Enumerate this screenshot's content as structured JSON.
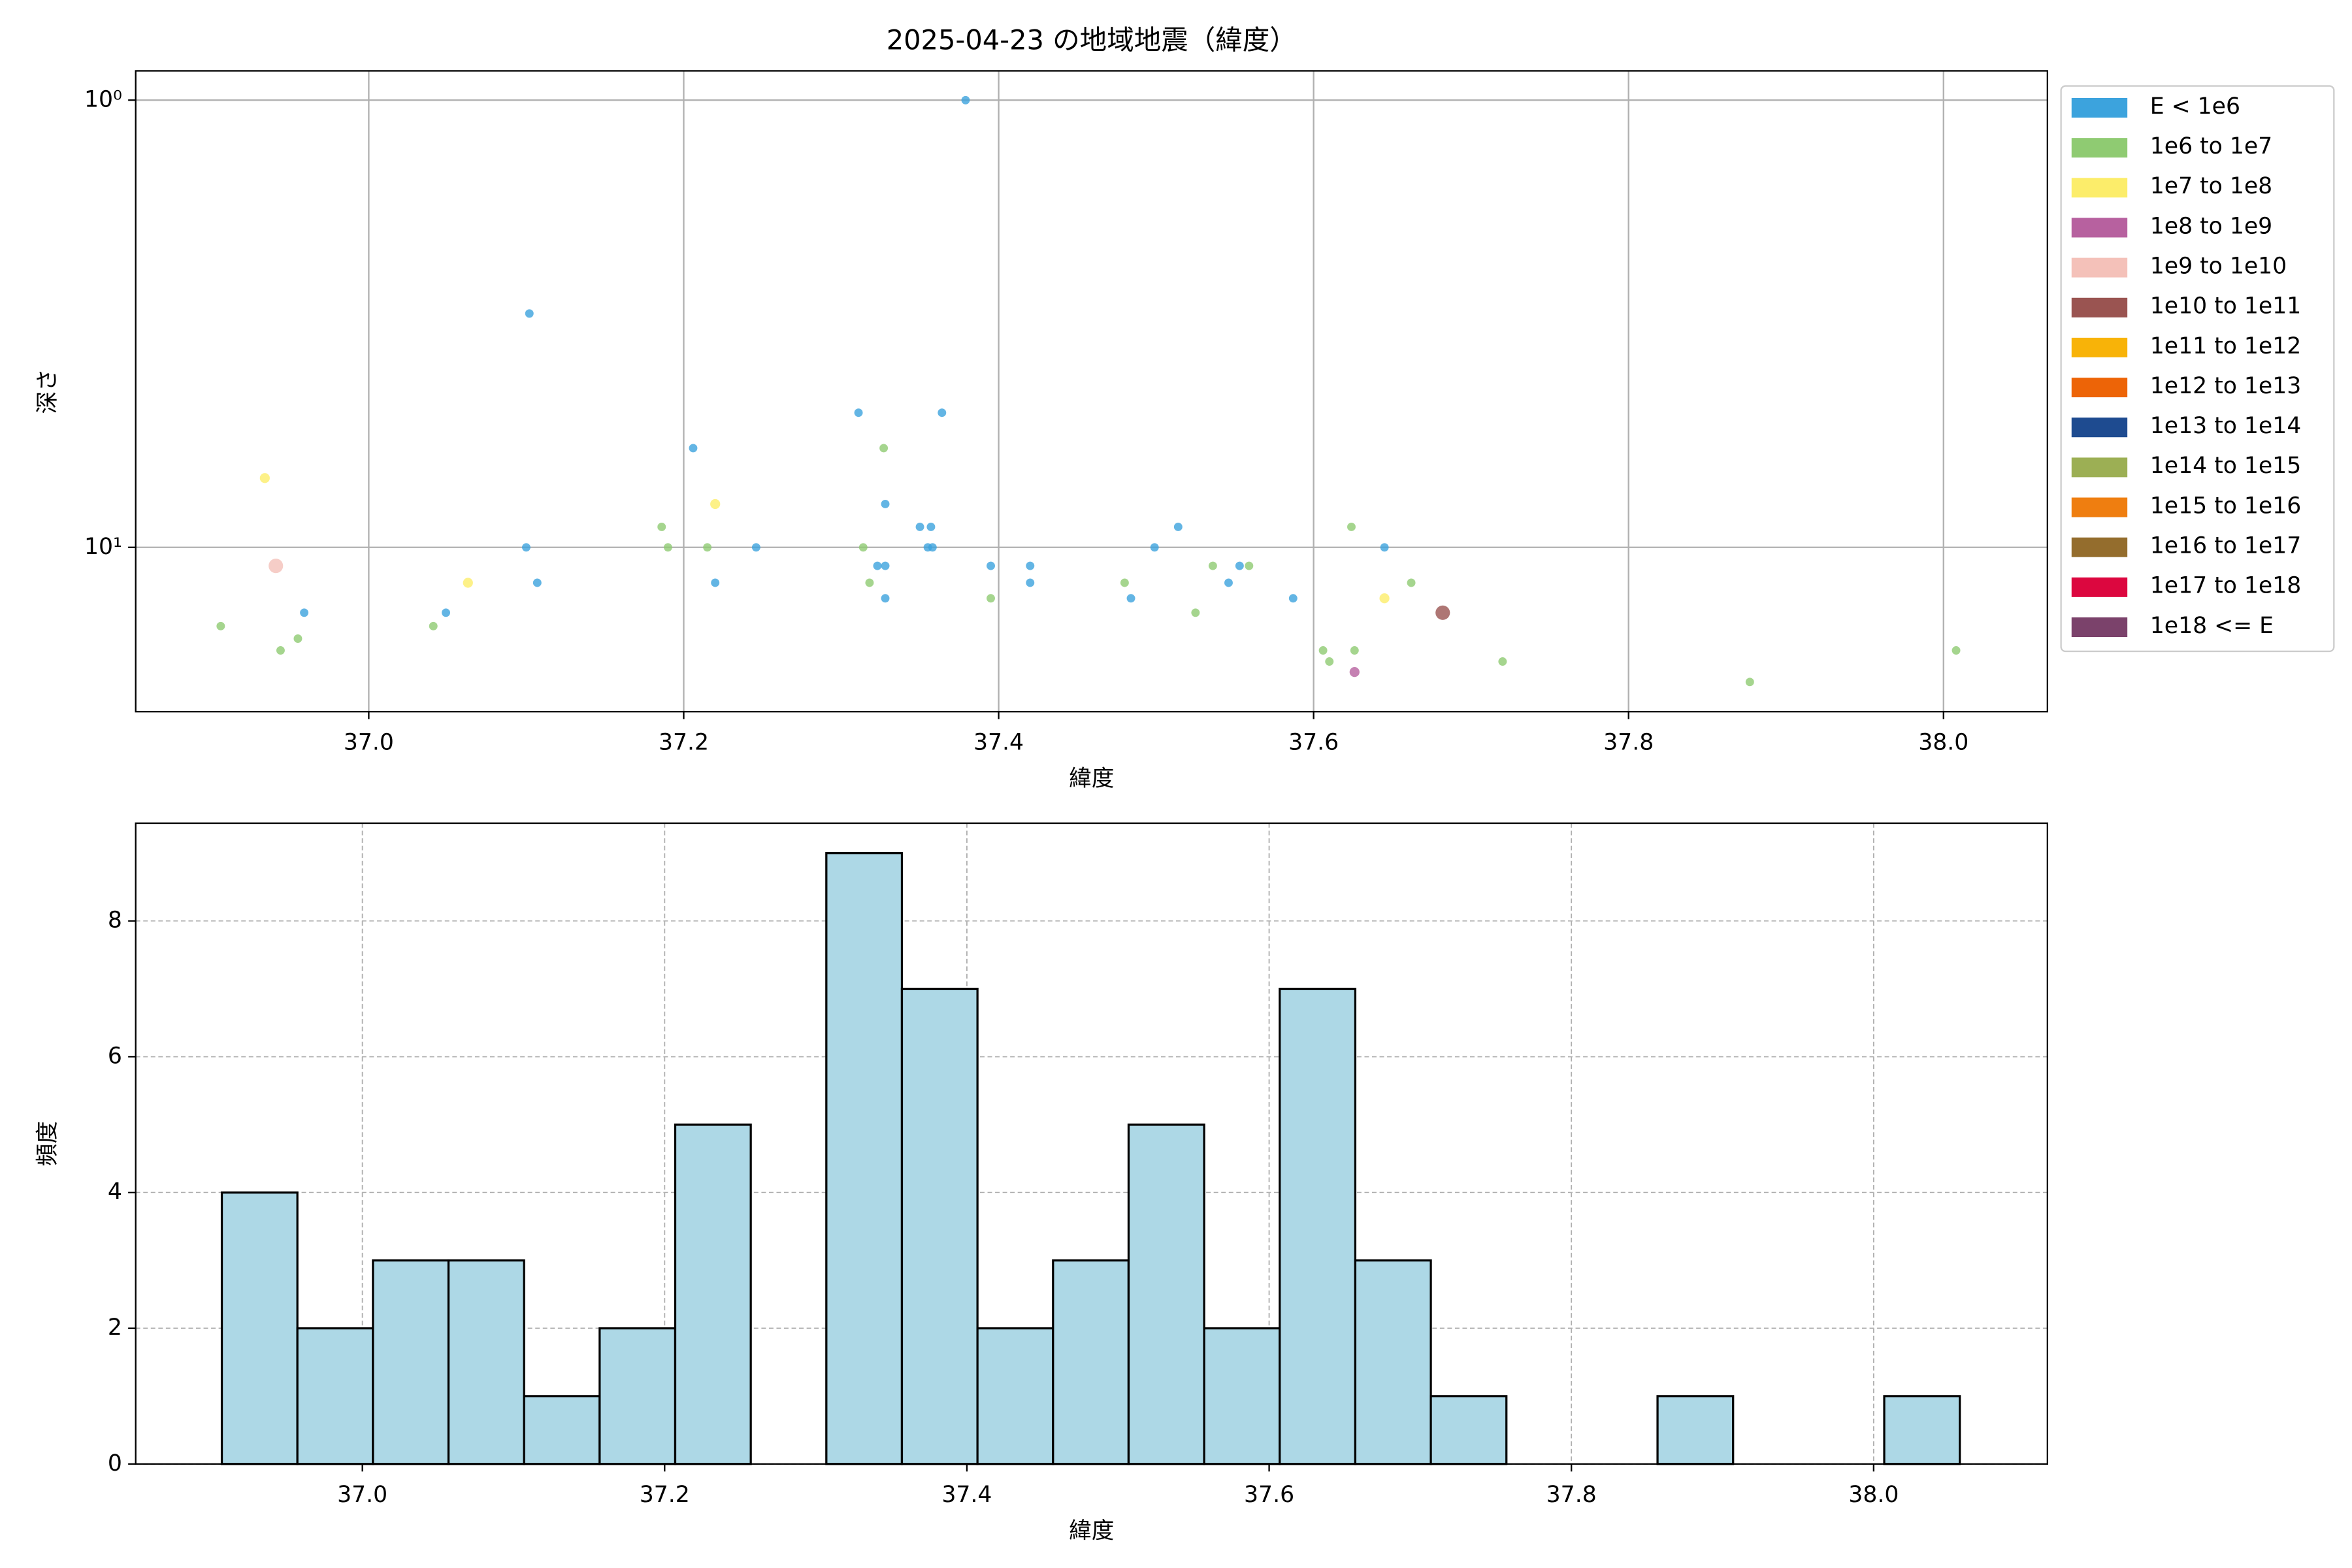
{
  "chart_data": [
    {
      "type": "scatter",
      "title": "2025-04-23 の地域地震（緯度）",
      "xlabel": "緯度",
      "ylabel": "深さ",
      "log_y": true,
      "grid": true,
      "legend": "outside-right",
      "xlim": [
        36.852,
        38.066
      ],
      "ylim": [
        23.3,
        0.86
      ],
      "xticks": [
        {
          "value": 37,
          "label": "37.0"
        },
        {
          "value": 37.2,
          "label": "37.2"
        },
        {
          "value": 37.4,
          "label": "37.4"
        },
        {
          "value": 37.6,
          "label": "37.6"
        },
        {
          "value": 37.8,
          "label": "37.8"
        },
        {
          "value": 38,
          "label": "38.0"
        }
      ],
      "yticks": [
        {
          "value": 1,
          "label": "10⁰"
        },
        {
          "value": 10,
          "label": "10¹"
        }
      ],
      "series": [
        {
          "name": "E < 1e6",
          "color": "#3ca3dd",
          "x": [
            37.379,
            37.102,
            37.311,
            37.364,
            37.206,
            37.328,
            37.35,
            37.357,
            37.1,
            37.246,
            37.355,
            37.358,
            37.499,
            37.514,
            37.645,
            37.323,
            37.328,
            37.395,
            37.42,
            37.553,
            37.107,
            37.22,
            37.42,
            37.546,
            37.328,
            37.484,
            37.587,
            36.959,
            37.049
          ],
          "values": [
            1,
            3,
            5,
            5,
            6,
            8,
            9,
            9,
            10,
            10,
            10,
            10,
            10,
            9,
            10,
            11,
            11,
            11,
            11,
            11,
            12,
            12,
            12,
            12,
            13,
            13,
            13,
            14,
            14
          ]
        },
        {
          "name": "1e6 to 1e7",
          "color": "#8fcb72",
          "x": [
            36.906,
            36.944,
            36.955,
            37.041,
            37.186,
            37.19,
            37.215,
            37.314,
            37.327,
            37.318,
            37.395,
            37.48,
            37.525,
            37.536,
            37.559,
            37.606,
            37.61,
            37.624,
            37.626,
            37.662,
            37.72,
            37.877,
            38.008
          ],
          "values": [
            15,
            17,
            16,
            15,
            9,
            10,
            10,
            10,
            6,
            12,
            13,
            12,
            14,
            11,
            11,
            17,
            18,
            9,
            17,
            12,
            18,
            20,
            17
          ]
        },
        {
          "name": "1e7 to 1e8",
          "color": "#fced6a",
          "x": [
            36.934,
            37.22,
            37.063,
            37.645
          ],
          "values": [
            7,
            8,
            12,
            13
          ]
        },
        {
          "name": "1e8 to 1e9",
          "color": "#b7619f",
          "x": [
            37.626
          ],
          "values": [
            19
          ]
        },
        {
          "name": "1e9 to 1e10",
          "color": "#f4c1b9",
          "x": [
            36.941
          ],
          "values": [
            11
          ]
        },
        {
          "name": "1e10 to 1e11",
          "color": "#9a5451",
          "x": [
            37.682
          ],
          "values": [
            14
          ]
        },
        {
          "name": "1e11 to 1e12",
          "color": "#f8b308",
          "x": [],
          "values": []
        },
        {
          "name": "1e12 to 1e13",
          "color": "#ed6407",
          "x": [],
          "values": []
        },
        {
          "name": "1e13 to 1e14",
          "color": "#1e4b90",
          "x": [],
          "values": []
        },
        {
          "name": "1e14 to 1e15",
          "color": "#9caf54",
          "x": [],
          "values": []
        },
        {
          "name": "1e15 to 1e16",
          "color": "#ef7e10",
          "x": [],
          "values": []
        },
        {
          "name": "1e16 to 1e17",
          "color": "#946d2d",
          "x": [],
          "values": []
        },
        {
          "name": "1e17 to 1e18",
          "color": "#dc073f",
          "x": [],
          "values": []
        },
        {
          "name": "1e18 <= E",
          "color": "#7b426b",
          "x": [],
          "values": []
        }
      ]
    },
    {
      "type": "histogram",
      "xlabel": "緯度",
      "ylabel": "頻度",
      "grid": true,
      "color": "#add8e6",
      "edgecolor": "#000000",
      "xlim": [
        36.85,
        38.115
      ],
      "ylim": [
        0,
        9.44
      ],
      "xticks": [
        {
          "value": 37,
          "label": "37.0"
        },
        {
          "value": 37.2,
          "label": "37.2"
        },
        {
          "value": 37.4,
          "label": "37.4"
        },
        {
          "value": 37.6,
          "label": "37.6"
        },
        {
          "value": 37.8,
          "label": "37.8"
        },
        {
          "value": 38,
          "label": "38.0"
        }
      ],
      "yticks": [
        0,
        2,
        4,
        6,
        8
      ],
      "bins": [
        36.907,
        36.957,
        37.007,
        37.057,
        37.107,
        37.157,
        37.207,
        37.257,
        37.307,
        37.357,
        37.407,
        37.457,
        37.507,
        37.557,
        37.607,
        37.657,
        37.707,
        37.757,
        37.807,
        37.857,
        37.907,
        37.957,
        38.007,
        38.057
      ],
      "values": [
        4,
        2,
        3,
        3,
        1,
        2,
        5,
        0,
        9,
        7,
        2,
        3,
        5,
        2,
        7,
        3,
        1,
        0,
        0,
        1,
        0,
        0,
        1
      ]
    }
  ]
}
